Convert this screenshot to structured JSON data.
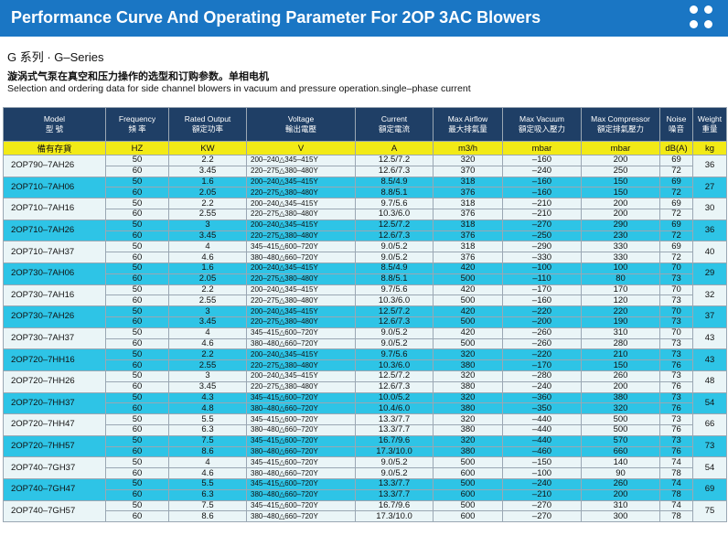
{
  "header": {
    "title": "Performance Curve And Operating Parameter For 2OP 3AC Blowers"
  },
  "series_label": "G 系列 · G–Series",
  "subtitle_cn": "漩涡式气泵在真空和压力操作的选型和订购参数。单相电机",
  "subtitle_en": "Selection and ordering data for side channel blowers in vacuum and pressure operation.single–phase current",
  "colors": {
    "banner": "#1a76c4",
    "header_row": "#1f3f66",
    "units_row": "#f2ea16",
    "row_light": "#eaf5f7",
    "row_cyan": "#2ec4e6"
  },
  "table": {
    "headers": [
      {
        "en": "Model",
        "cn": "型 號"
      },
      {
        "en": "Frequency",
        "cn": "頻 率"
      },
      {
        "en": "Rated Output",
        "cn": "額定功率"
      },
      {
        "en": "Voltage",
        "cn": "輸出電壓"
      },
      {
        "en": "Current",
        "cn": "額定電流"
      },
      {
        "en": "Max Airflow",
        "cn": "最大排氣量"
      },
      {
        "en": "Max Vacuum",
        "cn": "額定吸入壓力"
      },
      {
        "en": "Max Compressor",
        "cn": "額定排氣壓力"
      },
      {
        "en": "Noise",
        "cn": "噪音"
      },
      {
        "en": "Weight",
        "cn": "重量"
      }
    ],
    "units": [
      "備有存貨",
      "HZ",
      "KW",
      "V",
      "A",
      "m3/h",
      "mbar",
      "mbar",
      "dB(A)",
      "kg"
    ],
    "models": [
      {
        "model": "2OP790–7AH26",
        "weight": "36",
        "rows": [
          {
            "freq": "50",
            "output": "2.2",
            "voltage": "200–240△345–415Y",
            "current": "12.5/7.2",
            "airflow": "320",
            "vacuum": "–160",
            "compressor": "200",
            "noise": "69"
          },
          {
            "freq": "60",
            "output": "3.45",
            "voltage": "220–275△380–480Y",
            "current": "12.6/7.3",
            "airflow": "370",
            "vacuum": "–240",
            "compressor": "250",
            "noise": "72"
          }
        ]
      },
      {
        "model": "2OP710–7AH06",
        "weight": "27",
        "rows": [
          {
            "freq": "50",
            "output": "1.6",
            "voltage": "200–240△345–415Y",
            "current": "8.5/4.9",
            "airflow": "318",
            "vacuum": "–160",
            "compressor": "150",
            "noise": "69"
          },
          {
            "freq": "60",
            "output": "2.05",
            "voltage": "220–275△380–480Y",
            "current": "8.8/5.1",
            "airflow": "376",
            "vacuum": "–160",
            "compressor": "150",
            "noise": "72"
          }
        ]
      },
      {
        "model": "2OP710–7AH16",
        "weight": "30",
        "rows": [
          {
            "freq": "50",
            "output": "2.2",
            "voltage": "200–240△345–415Y",
            "current": "9.7/5.6",
            "airflow": "318",
            "vacuum": "–210",
            "compressor": "200",
            "noise": "69"
          },
          {
            "freq": "60",
            "output": "2.55",
            "voltage": "220–275△380–480Y",
            "current": "10.3/6.0",
            "airflow": "376",
            "vacuum": "–210",
            "compressor": "200",
            "noise": "72"
          }
        ]
      },
      {
        "model": "2OP710–7AH26",
        "weight": "36",
        "rows": [
          {
            "freq": "50",
            "output": "3",
            "voltage": "200–240△345–415Y",
            "current": "12.5/7.2",
            "airflow": "318",
            "vacuum": "–270",
            "compressor": "290",
            "noise": "69"
          },
          {
            "freq": "60",
            "output": "3.45",
            "voltage": "220–275△380–480Y",
            "current": "12.6/7.3",
            "airflow": "376",
            "vacuum": "–250",
            "compressor": "230",
            "noise": "72"
          }
        ]
      },
      {
        "model": "2OP710–7AH37",
        "weight": "40",
        "rows": [
          {
            "freq": "50",
            "output": "4",
            "voltage": "345–415△600–720Y",
            "current": "9.0/5.2",
            "airflow": "318",
            "vacuum": "–290",
            "compressor": "330",
            "noise": "69"
          },
          {
            "freq": "60",
            "output": "4.6",
            "voltage": "380–480△660–720Y",
            "current": "9.0/5.2",
            "airflow": "376",
            "vacuum": "–330",
            "compressor": "330",
            "noise": "72"
          }
        ]
      },
      {
        "model": "2OP730–7AH06",
        "weight": "29",
        "rows": [
          {
            "freq": "50",
            "output": "1.6",
            "voltage": "200–240△345–415Y",
            "current": "8.5/4.9",
            "airflow": "420",
            "vacuum": "–100",
            "compressor": "100",
            "noise": "70"
          },
          {
            "freq": "60",
            "output": "2.05",
            "voltage": "220–275△380–480Y",
            "current": "8.8/5.1",
            "airflow": "500",
            "vacuum": "–110",
            "compressor": "80",
            "noise": "73"
          }
        ]
      },
      {
        "model": "2OP730–7AH16",
        "weight": "32",
        "rows": [
          {
            "freq": "50",
            "output": "2.2",
            "voltage": "200–240△345–415Y",
            "current": "9.7/5.6",
            "airflow": "420",
            "vacuum": "–170",
            "compressor": "170",
            "noise": "70"
          },
          {
            "freq": "60",
            "output": "2.55",
            "voltage": "220–275△380–480Y",
            "current": "10.3/6.0",
            "airflow": "500",
            "vacuum": "–160",
            "compressor": "120",
            "noise": "73"
          }
        ]
      },
      {
        "model": "2OP730–7AH26",
        "weight": "37",
        "rows": [
          {
            "freq": "50",
            "output": "3",
            "voltage": "200–240△345–415Y",
            "current": "12.5/7.2",
            "airflow": "420",
            "vacuum": "–220",
            "compressor": "220",
            "noise": "70"
          },
          {
            "freq": "60",
            "output": "3.45",
            "voltage": "220–275△380–480Y",
            "current": "12.6/7.3",
            "airflow": "500",
            "vacuum": "–200",
            "compressor": "190",
            "noise": "73"
          }
        ]
      },
      {
        "model": "2OP730–7AH37",
        "weight": "43",
        "rows": [
          {
            "freq": "50",
            "output": "4",
            "voltage": "345–415△600–720Y",
            "current": "9.0/5.2",
            "airflow": "420",
            "vacuum": "–260",
            "compressor": "310",
            "noise": "70"
          },
          {
            "freq": "60",
            "output": "4.6",
            "voltage": "380–480△660–720Y",
            "current": "9.0/5.2",
            "airflow": "500",
            "vacuum": "–260",
            "compressor": "280",
            "noise": "73"
          }
        ]
      },
      {
        "model": "2OP720–7HH16",
        "weight": "43",
        "rows": [
          {
            "freq": "50",
            "output": "2.2",
            "voltage": "200–240△345–415Y",
            "current": "9.7/5.6",
            "airflow": "320",
            "vacuum": "–220",
            "compressor": "210",
            "noise": "73"
          },
          {
            "freq": "60",
            "output": "2.55",
            "voltage": "220–275△380–480Y",
            "current": "10.3/6.0",
            "airflow": "380",
            "vacuum": "–170",
            "compressor": "150",
            "noise": "76"
          }
        ]
      },
      {
        "model": "2OP720–7HH26",
        "weight": "48",
        "rows": [
          {
            "freq": "50",
            "output": "3",
            "voltage": "200–240△345–415Y",
            "current": "12.5/7.2",
            "airflow": "320",
            "vacuum": "–280",
            "compressor": "260",
            "noise": "73"
          },
          {
            "freq": "60",
            "output": "3.45",
            "voltage": "220–275△380–480Y",
            "current": "12.6/7.3",
            "airflow": "380",
            "vacuum": "–240",
            "compressor": "200",
            "noise": "76"
          }
        ]
      },
      {
        "model": "2OP720–7HH37",
        "weight": "54",
        "rows": [
          {
            "freq": "50",
            "output": "4.3",
            "voltage": "345–415△600–720Y",
            "current": "10.0/5.2",
            "airflow": "320",
            "vacuum": "–360",
            "compressor": "380",
            "noise": "73"
          },
          {
            "freq": "60",
            "output": "4.8",
            "voltage": "380–480△660–720Y",
            "current": "10.4/6.0",
            "airflow": "380",
            "vacuum": "–350",
            "compressor": "320",
            "noise": "76"
          }
        ]
      },
      {
        "model": "2OP720–7HH47",
        "weight": "66",
        "rows": [
          {
            "freq": "50",
            "output": "5.5",
            "voltage": "345–415△600–720Y",
            "current": "13.3/7.7",
            "airflow": "320",
            "vacuum": "–440",
            "compressor": "500",
            "noise": "73"
          },
          {
            "freq": "60",
            "output": "6.3",
            "voltage": "380–480△660–720Y",
            "current": "13.3/7.7",
            "airflow": "380",
            "vacuum": "–440",
            "compressor": "500",
            "noise": "76"
          }
        ]
      },
      {
        "model": "2OP720–7HH57",
        "weight": "73",
        "rows": [
          {
            "freq": "50",
            "output": "7.5",
            "voltage": "345–415△600–720Y",
            "current": "16.7/9.6",
            "airflow": "320",
            "vacuum": "–440",
            "compressor": "570",
            "noise": "73"
          },
          {
            "freq": "60",
            "output": "8.6",
            "voltage": "380–480△660–720Y",
            "current": "17.3/10.0",
            "airflow": "380",
            "vacuum": "–460",
            "compressor": "660",
            "noise": "76"
          }
        ]
      },
      {
        "model": "2OP740–7GH37",
        "weight": "54",
        "rows": [
          {
            "freq": "50",
            "output": "4",
            "voltage": "345–415△600–720Y",
            "current": "9.0/5.2",
            "airflow": "500",
            "vacuum": "–150",
            "compressor": "140",
            "noise": "74"
          },
          {
            "freq": "60",
            "output": "4.6",
            "voltage": "380–480△660–720Y",
            "current": "9.0/5.2",
            "airflow": "600",
            "vacuum": "–100",
            "compressor": "90",
            "noise": "78"
          }
        ]
      },
      {
        "model": "2OP740–7GH47",
        "weight": "69",
        "rows": [
          {
            "freq": "50",
            "output": "5.5",
            "voltage": "345–415△600–720Y",
            "current": "13.3/7.7",
            "airflow": "500",
            "vacuum": "–240",
            "compressor": "260",
            "noise": "74"
          },
          {
            "freq": "60",
            "output": "6.3",
            "voltage": "380–480△660–720Y",
            "current": "13.3/7.7",
            "airflow": "600",
            "vacuum": "–210",
            "compressor": "200",
            "noise": "78"
          }
        ]
      },
      {
        "model": "2OP740–7GH57",
        "weight": "75",
        "rows": [
          {
            "freq": "50",
            "output": "7.5",
            "voltage": "345–415△600–720Y",
            "current": "16.7/9.6",
            "airflow": "500",
            "vacuum": "–270",
            "compressor": "310",
            "noise": "74"
          },
          {
            "freq": "60",
            "output": "8.6",
            "voltage": "380–480△660–720Y",
            "current": "17.3/10.0",
            "airflow": "600",
            "vacuum": "–270",
            "compressor": "300",
            "noise": "78"
          }
        ]
      }
    ]
  }
}
